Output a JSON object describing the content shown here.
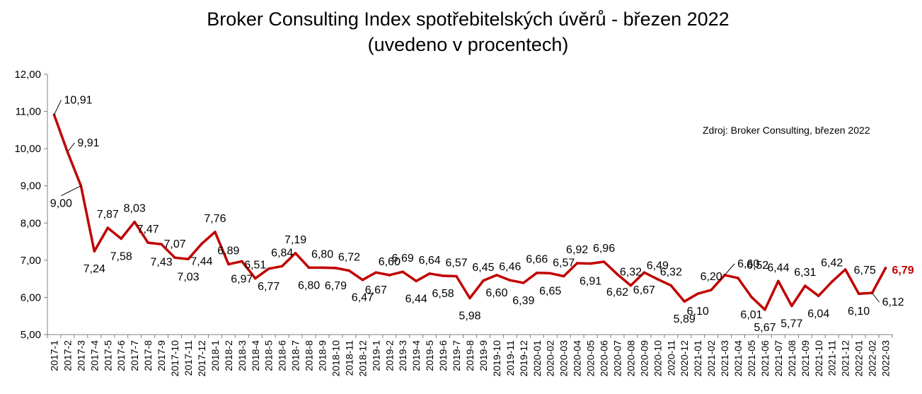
{
  "chart_data": {
    "type": "line",
    "title": "Broker Consulting Index spotřebitelských úvěrů - březen 2022",
    "subtitle": "(uvedeno v procentech)",
    "source": "Zdroj: Broker Consulting, březen 2022",
    "ylim": [
      5,
      12
    ],
    "yticks": [
      "5,00",
      "6,00",
      "7,00",
      "8,00",
      "9,00",
      "10,00",
      "11,00",
      "12,00"
    ],
    "grid": false,
    "colors": {
      "line": "#C00000",
      "last_label": "#C00000",
      "text": "#000000",
      "axis": "#808080"
    },
    "categories": [
      "2017-1",
      "2017-2",
      "2017-3",
      "2017-4",
      "2017-5",
      "2017-6",
      "2017-7",
      "2017-8",
      "2017-9",
      "2017-10",
      "2017-11",
      "2017-12",
      "2018-1",
      "2018-2",
      "2018-3",
      "2018-4",
      "2018-5",
      "2018-6",
      "2018-7",
      "2018-8",
      "2018-9",
      "2018-10",
      "2018-11",
      "2018-12",
      "2019-1",
      "2019-2",
      "2019-3",
      "2019-4",
      "2019-5",
      "2019-6",
      "2019-7",
      "2019-8",
      "2019-9",
      "2019-10",
      "2019-11",
      "2019-12",
      "2020-01",
      "2020-02",
      "2020-03",
      "2020-04",
      "2020-05",
      "2020-06",
      "2020-07",
      "2020-08",
      "2020-09",
      "2020-10",
      "2020-11",
      "2020-12",
      "2021-01",
      "2021-02",
      "2021-03",
      "2021-04",
      "2021-05",
      "2021-06",
      "2021-07",
      "2021-08",
      "2021-09",
      "2021-10",
      "2021-11",
      "2021-12",
      "2022-01",
      "2022-02",
      "2022-03"
    ],
    "values": [
      10.91,
      9.91,
      9.0,
      7.24,
      7.87,
      7.58,
      8.03,
      7.47,
      7.43,
      7.07,
      7.03,
      7.44,
      7.76,
      6.89,
      6.97,
      6.51,
      6.77,
      6.84,
      7.19,
      6.8,
      6.8,
      6.79,
      6.72,
      6.47,
      6.67,
      6.6,
      6.69,
      6.44,
      6.64,
      6.58,
      6.57,
      5.98,
      6.45,
      6.6,
      6.46,
      6.39,
      6.66,
      6.65,
      6.57,
      6.92,
      6.91,
      6.96,
      6.62,
      6.32,
      6.67,
      6.49,
      6.32,
      5.89,
      6.1,
      6.2,
      6.6,
      6.52,
      6.01,
      5.67,
      6.44,
      5.77,
      6.31,
      6.04,
      6.42,
      6.75,
      6.1,
      6.12,
      6.79
    ],
    "labels": [
      "10,91",
      "9,91",
      "9,00",
      "7,24",
      "7,87",
      "7,58",
      "8,03",
      "7,47",
      "7,43",
      "7,07",
      "7,03",
      "7,44",
      "7,76",
      "6,89",
      "6,97",
      "6,51",
      "6,77",
      "6,84",
      "7,19",
      "6,80",
      "6,80",
      "6,79",
      "6,72",
      "6,47",
      "6,67",
      "6,60",
      "6,69",
      "6,44",
      "6,64",
      "6,58",
      "6,57",
      "5,98",
      "6,45",
      "6,60",
      "6,46",
      "6,39",
      "6,66",
      "6,65",
      "6,57",
      "6,92",
      "6,91",
      "6,96",
      "6,62",
      "6,32",
      "6,67",
      "6,49",
      "6,32",
      "5,89",
      "6,10",
      "6,20",
      "6,60",
      "6,52",
      "6,01",
      "5,67",
      "6,44",
      "5,77",
      "6,31",
      "6,04",
      "6,42",
      "6,75",
      "6,10",
      "6,12",
      "6,79"
    ]
  }
}
